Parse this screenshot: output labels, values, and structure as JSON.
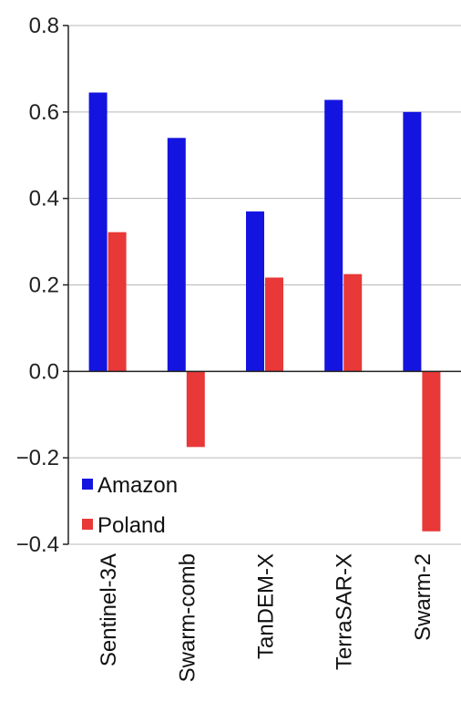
{
  "chart_data": {
    "type": "bar",
    "categories": [
      "Sentinel-3A",
      "Swarm-comb",
      "TanDEM-X",
      "TerraSAR-X",
      "Swarm-2"
    ],
    "series": [
      {
        "name": "Amazon",
        "color": "#1414e0",
        "values": [
          0.645,
          0.54,
          0.37,
          0.628,
          0.6
        ]
      },
      {
        "name": "Poland",
        "color": "#e83838",
        "values": [
          0.322,
          -0.175,
          0.217,
          0.225,
          -0.37
        ]
      }
    ],
    "ylim": [
      -0.4,
      0.8
    ],
    "yticks": [
      -0.4,
      -0.2,
      0.0,
      0.2,
      0.4,
      0.6,
      0.8
    ],
    "ytick_labels": [
      "−0.4",
      "−0.2",
      "0.0",
      "0.2",
      "0.4",
      "0.6",
      "0.8"
    ],
    "grid": true,
    "legend_position": "bottom-left",
    "title": "",
    "xlabel": "",
    "ylabel": ""
  }
}
